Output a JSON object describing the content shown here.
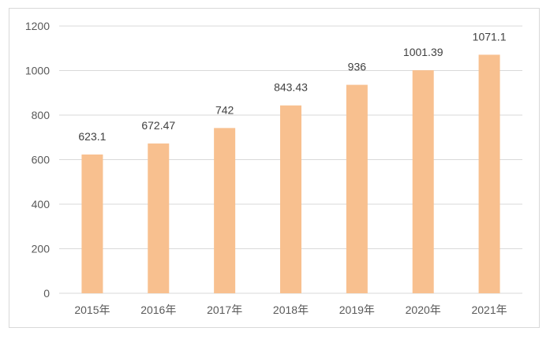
{
  "chart_data": {
    "type": "bar",
    "title": "",
    "xlabel": "",
    "ylabel": "",
    "categories": [
      "2015年",
      "2016年",
      "2017年",
      "2018年",
      "2019年",
      "2020年",
      "2021年"
    ],
    "values": [
      623.1,
      672.47,
      742,
      843.43,
      936,
      1001.39,
      1071.1
    ],
    "data_labels": [
      "623.1",
      "672.47",
      "742",
      "843.43",
      "936",
      "1001.39",
      "1071.1"
    ],
    "ylim": [
      0,
      1200
    ],
    "yticks": [
      "0",
      "200",
      "400",
      "600",
      "800",
      "1000",
      "1200"
    ],
    "grid": true,
    "legend": "none",
    "bar_color": "#f8c08f",
    "grid_color": "#d9d9d9"
  }
}
